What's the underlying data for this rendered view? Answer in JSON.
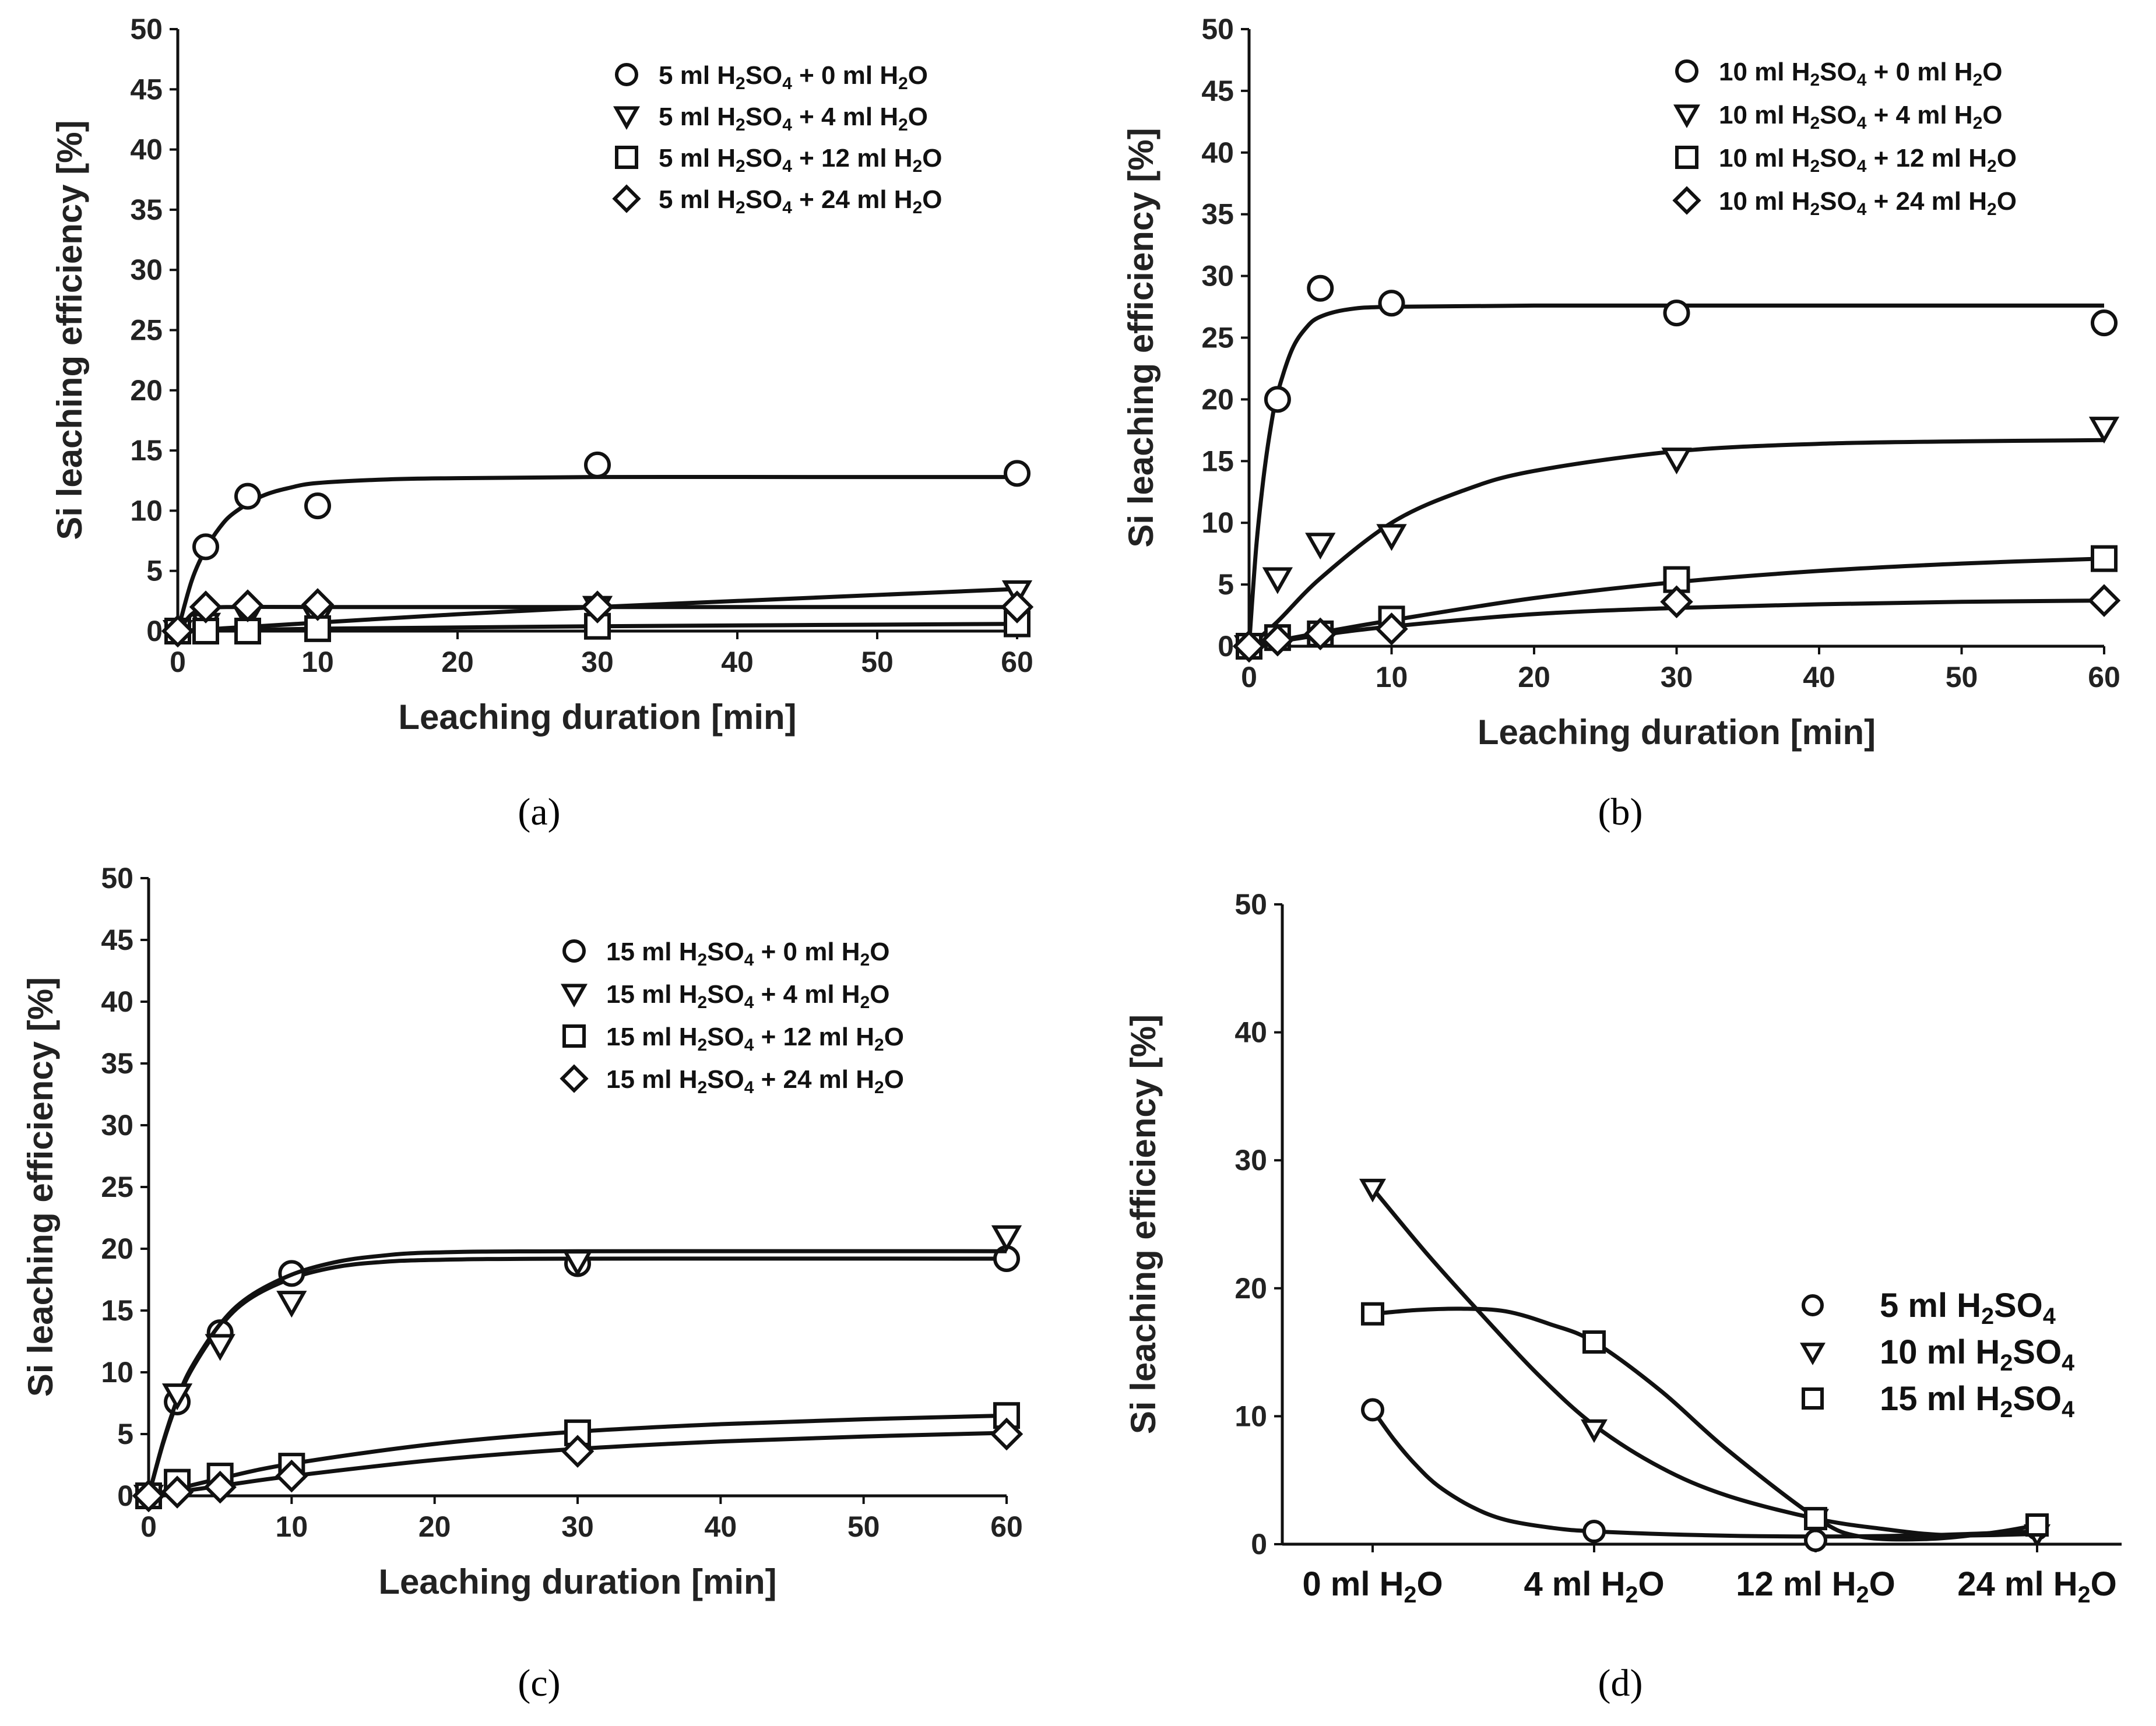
{
  "figure_captions": [
    "(a)",
    "(b)",
    "(c)",
    "(d)"
  ],
  "chart_data": [
    {
      "id": "a",
      "type": "scatter",
      "xlabel": "Leaching duration [min]",
      "ylabel": "Si leaching efficiency [%]",
      "xlim": [
        0,
        60
      ],
      "ylim": [
        0,
        50
      ],
      "xticks": [
        "0",
        "10",
        "20",
        "30",
        "40",
        "50",
        "60"
      ],
      "yticks": [
        "0",
        "5",
        "10",
        "15",
        "20",
        "25",
        "30",
        "35",
        "40",
        "45",
        "50"
      ],
      "legend_position": "top-right",
      "series": [
        {
          "name": "5 ml H₂SO₄ + 0 ml H₂O",
          "marker": "circle",
          "x": [
            0,
            2,
            5,
            10,
            30,
            60
          ],
          "y": [
            0,
            7,
            11.2,
            10.4,
            13.8,
            13.1
          ],
          "fit": [
            [
              0,
              0
            ],
            [
              1,
              4.2
            ],
            [
              2,
              6.8
            ],
            [
              3,
              8.6
            ],
            [
              4,
              9.8
            ],
            [
              6,
              11.2
            ],
            [
              8,
              11.9
            ],
            [
              10,
              12.3
            ],
            [
              15,
              12.6
            ],
            [
              20,
              12.7
            ],
            [
              30,
              12.8
            ],
            [
              45,
              12.8
            ],
            [
              60,
              12.8
            ]
          ]
        },
        {
          "name": "5 ml H₂SO₄ + 4 ml H₂O",
          "marker": "triangle",
          "x": [
            0,
            2,
            5,
            10,
            30,
            60
          ],
          "y": [
            0,
            0.6,
            1.2,
            1,
            2,
            3.3
          ],
          "fit": [
            [
              0,
              0
            ],
            [
              10,
              0.7
            ],
            [
              20,
              1.4
            ],
            [
              30,
              2
            ],
            [
              40,
              2.5
            ],
            [
              50,
              3
            ],
            [
              60,
              3.5
            ]
          ]
        },
        {
          "name": "5 ml H₂SO₄ + 12 ml H₂O",
          "marker": "square",
          "x": [
            0,
            2,
            5,
            10,
            30,
            60
          ],
          "y": [
            0,
            0,
            0,
            0.2,
            0.4,
            0.6
          ],
          "fit": [
            [
              0,
              0
            ],
            [
              10,
              0.2
            ],
            [
              30,
              0.4
            ],
            [
              60,
              0.6
            ]
          ]
        },
        {
          "name": "5 ml H₂SO₄ + 24 ml H₂O",
          "marker": "diamond",
          "x": [
            0,
            2,
            5,
            10,
            30,
            60
          ],
          "y": [
            0,
            2,
            2.1,
            2.2,
            2,
            2
          ],
          "fit": [
            [
              0,
              0
            ],
            [
              1,
              1.4
            ],
            [
              2,
              1.9
            ],
            [
              4,
              2
            ],
            [
              10,
              2
            ],
            [
              30,
              2
            ],
            [
              60,
              2
            ]
          ]
        }
      ]
    },
    {
      "id": "b",
      "type": "scatter",
      "xlabel": "Leaching duration [min]",
      "ylabel": "Si leaching efficiency [%]",
      "xlim": [
        0,
        60
      ],
      "ylim": [
        0,
        50
      ],
      "xticks": [
        "0",
        "10",
        "20",
        "30",
        "40",
        "50",
        "60"
      ],
      "yticks": [
        "0",
        "5",
        "10",
        "15",
        "20",
        "25",
        "30",
        "35",
        "40",
        "45",
        "50"
      ],
      "legend_position": "top-right",
      "series": [
        {
          "name": "10 ml H₂SO₄ + 0 ml H₂O",
          "marker": "circle",
          "x": [
            0,
            2,
            5,
            10,
            30,
            60
          ],
          "y": [
            0,
            20,
            29,
            27.8,
            27,
            26.2
          ],
          "fit": [
            [
              0,
              0
            ],
            [
              0.5,
              8
            ],
            [
              1,
              13.5
            ],
            [
              1.5,
              17.6
            ],
            [
              2,
              20.5
            ],
            [
              3,
              24
            ],
            [
              4,
              25.8
            ],
            [
              5,
              26.7
            ],
            [
              7,
              27.3
            ],
            [
              10,
              27.5
            ],
            [
              20,
              27.6
            ],
            [
              40,
              27.6
            ],
            [
              60,
              27.6
            ]
          ]
        },
        {
          "name": "10 ml H₂SO₄ + 4 ml H₂O",
          "marker": "triangle",
          "x": [
            0,
            2,
            5,
            10,
            30,
            60
          ],
          "y": [
            0,
            5.5,
            8.3,
            9,
            15.2,
            17.7
          ],
          "fit": [
            [
              0,
              0
            ],
            [
              2,
              2
            ],
            [
              5,
              5.5
            ],
            [
              10,
              10
            ],
            [
              15,
              12.6
            ],
            [
              20,
              14.2
            ],
            [
              30,
              15.8
            ],
            [
              40,
              16.4
            ],
            [
              50,
              16.6
            ],
            [
              60,
              16.7
            ]
          ]
        },
        {
          "name": "10 ml H₂SO₄ + 12 ml H₂O",
          "marker": "square",
          "x": [
            0,
            2,
            5,
            10,
            30,
            60
          ],
          "y": [
            0,
            0.7,
            1,
            2.2,
            5.4,
            7.1
          ],
          "fit": [
            [
              0,
              0
            ],
            [
              5,
              1.1
            ],
            [
              10,
              2.1
            ],
            [
              20,
              3.9
            ],
            [
              30,
              5.2
            ],
            [
              40,
              6.1
            ],
            [
              50,
              6.7
            ],
            [
              60,
              7.1
            ]
          ]
        },
        {
          "name": "10 ml H₂SO₄ + 24 ml H₂O",
          "marker": "diamond",
          "x": [
            0,
            2,
            5,
            10,
            30,
            60
          ],
          "y": [
            0,
            0.5,
            1,
            1.4,
            3.6,
            3.7
          ],
          "fit": [
            [
              0,
              0
            ],
            [
              5,
              0.9
            ],
            [
              10,
              1.6
            ],
            [
              20,
              2.6
            ],
            [
              30,
              3.1
            ],
            [
              40,
              3.4
            ],
            [
              50,
              3.6
            ],
            [
              60,
              3.7
            ]
          ]
        }
      ]
    },
    {
      "id": "c",
      "type": "scatter",
      "xlabel": "Leaching duration [min]",
      "ylabel": "Si leaching efficiency [%]",
      "xlim": [
        0,
        60
      ],
      "ylim": [
        0,
        50
      ],
      "xticks": [
        "0",
        "10",
        "20",
        "30",
        "40",
        "50",
        "60"
      ],
      "yticks": [
        "0",
        "5",
        "10",
        "15",
        "20",
        "25",
        "30",
        "35",
        "40",
        "45",
        "50"
      ],
      "legend_position": "top-right",
      "series": [
        {
          "name": "15 ml H₂SO₄ + 0 ml H₂O",
          "marker": "circle",
          "x": [
            0,
            2,
            5,
            10,
            30,
            60
          ],
          "y": [
            0,
            7.6,
            13.2,
            18,
            18.8,
            19.2
          ],
          "fit": [
            [
              0,
              0
            ],
            [
              1,
              4.2
            ],
            [
              2,
              7.6
            ],
            [
              3,
              10.2
            ],
            [
              5,
              13.7
            ],
            [
              7,
              15.9
            ],
            [
              10,
              17.6
            ],
            [
              13,
              18.5
            ],
            [
              16,
              18.9
            ],
            [
              20,
              19.1
            ],
            [
              30,
              19.2
            ],
            [
              60,
              19.2
            ]
          ]
        },
        {
          "name": "15 ml H₂SO₄ + 4 ml H₂O",
          "marker": "triangle",
          "x": [
            0,
            2,
            5,
            10,
            30,
            60
          ],
          "y": [
            0,
            8.2,
            12.2,
            15.7,
            19,
            21
          ],
          "fit": [
            [
              0,
              0
            ],
            [
              1,
              4.3
            ],
            [
              2,
              7.8
            ],
            [
              3,
              10.4
            ],
            [
              5,
              13.9
            ],
            [
              7,
              16.1
            ],
            [
              10,
              17.9
            ],
            [
              13,
              18.9
            ],
            [
              16,
              19.4
            ],
            [
              20,
              19.7
            ],
            [
              30,
              19.8
            ],
            [
              60,
              19.8
            ]
          ]
        },
        {
          "name": "15 ml H₂SO₄ + 12 ml H₂O",
          "marker": "square",
          "x": [
            0,
            2,
            5,
            10,
            30,
            60
          ],
          "y": [
            0,
            1.1,
            1.6,
            2.4,
            5.1,
            6.5
          ],
          "fit": [
            [
              0,
              0
            ],
            [
              5,
              1.4
            ],
            [
              10,
              2.6
            ],
            [
              20,
              4.2
            ],
            [
              30,
              5.2
            ],
            [
              40,
              5.8
            ],
            [
              50,
              6.2
            ],
            [
              60,
              6.5
            ]
          ]
        },
        {
          "name": "15 ml H₂SO₄ + 24 ml H₂O",
          "marker": "diamond",
          "x": [
            0,
            2,
            5,
            10,
            30,
            60
          ],
          "y": [
            0,
            0.3,
            0.7,
            1.6,
            3.6,
            5
          ],
          "fit": [
            [
              0,
              0
            ],
            [
              5,
              0.8
            ],
            [
              10,
              1.6
            ],
            [
              20,
              2.9
            ],
            [
              30,
              3.8
            ],
            [
              40,
              4.4
            ],
            [
              50,
              4.8
            ],
            [
              60,
              5.1
            ]
          ]
        }
      ]
    },
    {
      "id": "d",
      "type": "line",
      "xlabel": "",
      "ylabel": "Si leaching efficiency [%]",
      "categories": [
        "0 ml H₂O",
        "4 ml H₂O",
        "12 ml H₂O",
        "24 ml H₂O"
      ],
      "ylim": [
        0,
        50
      ],
      "yticks": [
        "0",
        "10",
        "20",
        "30",
        "40",
        "50"
      ],
      "legend_position": "right",
      "series": [
        {
          "name": "5 ml H2SO4",
          "marker": "circle",
          "values": [
            10.5,
            1,
            0.3,
            1.2
          ],
          "fit": [
            [
              0,
              10.5
            ],
            [
              0.1,
              8.1
            ],
            [
              0.2,
              6.1
            ],
            [
              0.3,
              4.5
            ],
            [
              0.45,
              2.9
            ],
            [
              0.6,
              1.9
            ],
            [
              0.8,
              1.3
            ],
            [
              1,
              1
            ],
            [
              1.5,
              0.7
            ],
            [
              2,
              0.6
            ],
            [
              2.5,
              0.7
            ],
            [
              3,
              1
            ]
          ]
        },
        {
          "name": "10 ml H2SO4",
          "marker": "triangle",
          "values": [
            27.8,
            9,
            2,
            0.8
          ],
          "fit": [
            [
              0,
              27.8
            ],
            [
              0.25,
              22.6
            ],
            [
              0.5,
              17.8
            ],
            [
              0.75,
              13.2
            ],
            [
              1,
              9.3
            ],
            [
              1.3,
              6
            ],
            [
              1.6,
              3.8
            ],
            [
              2,
              2
            ],
            [
              2.3,
              1.2
            ],
            [
              2.6,
              0.7
            ],
            [
              3,
              0.8
            ]
          ]
        },
        {
          "name": "15 ml H2SO4",
          "marker": "square",
          "values": [
            18,
            15.8,
            2,
            1.5
          ],
          "fit": [
            [
              0,
              18
            ],
            [
              0.2,
              18.3
            ],
            [
              0.4,
              18.4
            ],
            [
              0.6,
              18.2
            ],
            [
              0.8,
              17.2
            ],
            [
              1,
              15.8
            ],
            [
              1.3,
              12
            ],
            [
              1.6,
              7.4
            ],
            [
              2,
              2.1
            ],
            [
              2.2,
              0.6
            ],
            [
              2.5,
              0.4
            ],
            [
              2.8,
              0.9
            ],
            [
              3,
              1.5
            ]
          ]
        }
      ]
    }
  ]
}
